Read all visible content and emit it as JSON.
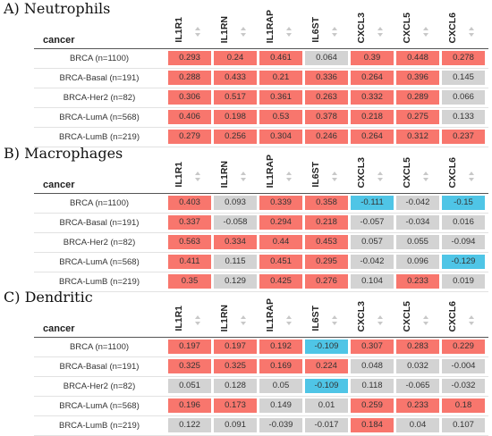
{
  "columns": [
    "IL1R1",
    "IL1RN",
    "IL1RAP",
    "IL6ST",
    "CXCL3",
    "CXCL5",
    "CXCL6"
  ],
  "colors": {
    "positive": "#f8766d",
    "neutral": "#d3d3d3",
    "negative": "#4fc5e6"
  },
  "panels": [
    {
      "title": "A) Neutrophils",
      "header_label": "cancer",
      "rows": [
        {
          "label": "BRCA (n=1100)",
          "values": [
            "0.293",
            "0.24",
            "0.461",
            "0.064",
            "0.39",
            "0.448",
            "0.278"
          ]
        },
        {
          "label": "BRCA-Basal (n=191)",
          "values": [
            "0.288",
            "0.433",
            "0.21",
            "0.336",
            "0.264",
            "0.396",
            "0.145"
          ]
        },
        {
          "label": "BRCA-Her2 (n=82)",
          "values": [
            "0.306",
            "0.517",
            "0.361",
            "0.263",
            "0.332",
            "0.289",
            "0.066"
          ]
        },
        {
          "label": "BRCA-LumA (n=568)",
          "values": [
            "0.406",
            "0.198",
            "0.53",
            "0.378",
            "0.218",
            "0.275",
            "0.133"
          ]
        },
        {
          "label": "BRCA-LumB (n=219)",
          "values": [
            "0.279",
            "0.256",
            "0.304",
            "0.246",
            "0.264",
            "0.312",
            "0.237"
          ]
        }
      ]
    },
    {
      "title": "B) Macrophages",
      "header_label": "cancer",
      "rows": [
        {
          "label": "BRCA (n=1100)",
          "values": [
            "0.403",
            "0.093",
            "0.339",
            "0.358",
            "-0.111",
            "-0.042",
            "-0.15"
          ]
        },
        {
          "label": "BRCA-Basal (n=191)",
          "values": [
            "0.337",
            "-0.058",
            "0.294",
            "0.218",
            "-0.057",
            "-0.034",
            "0.016"
          ]
        },
        {
          "label": "BRCA-Her2 (n=82)",
          "values": [
            "0.563",
            "0.334",
            "0.44",
            "0.453",
            "0.057",
            "0.055",
            "-0.094"
          ]
        },
        {
          "label": "BRCA-LumA (n=568)",
          "values": [
            "0.411",
            "0.115",
            "0.451",
            "0.295",
            "-0.042",
            "0.096",
            "-0.129"
          ]
        },
        {
          "label": "BRCA-LumB (n=219)",
          "values": [
            "0.35",
            "0.129",
            "0.425",
            "0.276",
            "0.104",
            "0.233",
            "0.019"
          ]
        }
      ]
    },
    {
      "title": "C) Dendritic",
      "header_label": "cancer",
      "rows": [
        {
          "label": "BRCA (n=1100)",
          "values": [
            "0.197",
            "0.197",
            "0.192",
            "-0.109",
            "0.307",
            "0.283",
            "0.229"
          ]
        },
        {
          "label": "BRCA-Basal (n=191)",
          "values": [
            "0.325",
            "0.325",
            "0.169",
            "0.224",
            "0.048",
            "0.032",
            "-0.004"
          ]
        },
        {
          "label": "BRCA-Her2 (n=82)",
          "values": [
            "0.051",
            "0.128",
            "0.05",
            "-0.109",
            "0.118",
            "-0.065",
            "-0.032"
          ]
        },
        {
          "label": "BRCA-LumA (n=568)",
          "values": [
            "0.196",
            "0.173",
            "0.149",
            "0.01",
            "0.259",
            "0.233",
            "0.18"
          ]
        },
        {
          "label": "BRCA-LumB (n=219)",
          "values": [
            "0.122",
            "0.091",
            "-0.039",
            "-0.017",
            "0.184",
            "0.04",
            "0.107"
          ]
        }
      ]
    }
  ]
}
